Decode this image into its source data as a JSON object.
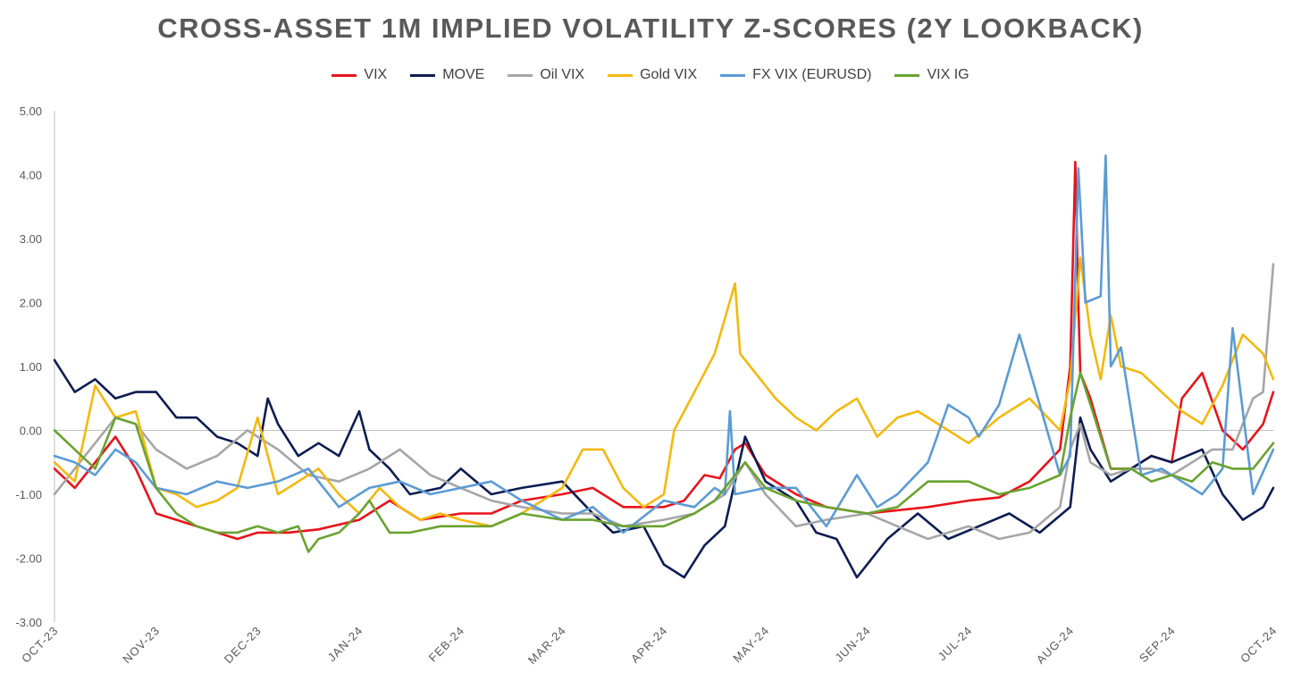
{
  "chart_data": {
    "type": "line",
    "title": "CROSS-ASSET 1M IMPLIED VOLATILITY Z-SCORES (2Y LOOKBACK)",
    "xlabel": "",
    "ylabel": "",
    "ylim": [
      -3,
      5
    ],
    "yticks": [
      "5.00",
      "4.00",
      "3.00",
      "2.00",
      "1.00",
      "0.00",
      "-1.00",
      "-2.00",
      "-3.00"
    ],
    "ytick_values": [
      5,
      4,
      3,
      2,
      1,
      0,
      -1,
      -2,
      -3
    ],
    "x_categories": [
      "OCT-23",
      "NOV-23",
      "DEC-23",
      "JAN-24",
      "FEB-24",
      "MAR-24",
      "APR-24",
      "MAY-24",
      "JUN-24",
      "JUL-24",
      "AUG-24",
      "SEP-24",
      "OCT-24"
    ],
    "x_positions": [
      0,
      1,
      2,
      3,
      4,
      5,
      6,
      7,
      8,
      9,
      10,
      11,
      12
    ],
    "legend_position": "top",
    "series": [
      {
        "name": "VIX",
        "color": "#e8141b",
        "x": [
          0,
          0.2,
          0.4,
          0.6,
          0.8,
          1.0,
          1.2,
          1.4,
          1.6,
          1.8,
          2.0,
          2.3,
          2.6,
          3.0,
          3.3,
          3.6,
          4.0,
          4.3,
          4.6,
          5.0,
          5.3,
          5.6,
          6.0,
          6.2,
          6.4,
          6.55,
          6.7,
          6.8,
          7.0,
          7.3,
          7.6,
          8.0,
          8.3,
          8.6,
          9.0,
          9.3,
          9.6,
          9.9,
          10.0,
          10.05,
          10.08,
          10.1,
          10.2,
          10.4,
          10.6,
          10.8,
          11.0,
          11.1,
          11.3,
          11.5,
          11.7,
          11.9,
          12.0
        ],
        "y": [
          -0.6,
          -0.9,
          -0.5,
          -0.1,
          -0.6,
          -1.3,
          -1.4,
          -1.5,
          -1.6,
          -1.7,
          -1.6,
          -1.6,
          -1.55,
          -1.4,
          -1.1,
          -1.4,
          -1.3,
          -1.3,
          -1.1,
          -1.0,
          -0.9,
          -1.2,
          -1.2,
          -1.1,
          -0.7,
          -0.75,
          -0.3,
          -0.2,
          -0.7,
          -1.0,
          -1.2,
          -1.3,
          -1.25,
          -1.2,
          -1.1,
          -1.05,
          -0.8,
          -0.3,
          1.0,
          4.2,
          2.0,
          0.9,
          0.5,
          -0.6,
          -0.6,
          -0.4,
          -0.5,
          0.5,
          0.9,
          0.0,
          -0.3,
          0.1,
          0.6
        ]
      },
      {
        "name": "MOVE",
        "color": "#0d1c52",
        "x": [
          0,
          0.2,
          0.4,
          0.6,
          0.8,
          1.0,
          1.2,
          1.4,
          1.6,
          1.8,
          2.0,
          2.1,
          2.2,
          2.4,
          2.6,
          2.8,
          3.0,
          3.1,
          3.3,
          3.5,
          3.8,
          4.0,
          4.3,
          4.6,
          5.0,
          5.3,
          5.5,
          5.8,
          6.0,
          6.2,
          6.4,
          6.6,
          6.8,
          7.0,
          7.3,
          7.5,
          7.7,
          7.9,
          8.2,
          8.5,
          8.8,
          9.1,
          9.4,
          9.7,
          10.0,
          10.1,
          10.2,
          10.4,
          10.6,
          10.8,
          11.0,
          11.3,
          11.5,
          11.7,
          11.9,
          12.0
        ],
        "y": [
          1.1,
          0.6,
          0.8,
          0.5,
          0.6,
          0.6,
          0.2,
          0.2,
          -0.1,
          -0.2,
          -0.4,
          0.5,
          0.1,
          -0.4,
          -0.2,
          -0.4,
          0.3,
          -0.3,
          -0.6,
          -1.0,
          -0.9,
          -0.6,
          -1.0,
          -0.9,
          -0.8,
          -1.3,
          -1.6,
          -1.5,
          -2.1,
          -2.3,
          -1.8,
          -1.5,
          -0.1,
          -0.8,
          -1.1,
          -1.6,
          -1.7,
          -2.3,
          -1.7,
          -1.3,
          -1.7,
          -1.5,
          -1.3,
          -1.6,
          -1.2,
          0.2,
          -0.3,
          -0.8,
          -0.6,
          -0.4,
          -0.5,
          -0.3,
          -1.0,
          -1.4,
          -1.2,
          -0.9
        ]
      },
      {
        "name": "Oil VIX",
        "color": "#a6a6a6",
        "x": [
          0,
          0.2,
          0.4,
          0.6,
          0.8,
          1.0,
          1.3,
          1.6,
          1.9,
          2.2,
          2.5,
          2.8,
          3.1,
          3.4,
          3.7,
          4.0,
          4.3,
          4.6,
          5.0,
          5.3,
          5.6,
          6.0,
          6.3,
          6.6,
          6.8,
          7.0,
          7.3,
          7.6,
          8.0,
          8.3,
          8.6,
          9.0,
          9.3,
          9.6,
          9.9,
          10.0,
          10.1,
          10.2,
          10.4,
          10.6,
          10.8,
          11.0,
          11.2,
          11.4,
          11.6,
          11.8,
          11.9,
          12.0
        ],
        "y": [
          -1.0,
          -0.6,
          -0.2,
          0.2,
          0.1,
          -0.3,
          -0.6,
          -0.4,
          0.0,
          -0.3,
          -0.7,
          -0.8,
          -0.6,
          -0.3,
          -0.7,
          -0.9,
          -1.1,
          -1.2,
          -1.3,
          -1.3,
          -1.5,
          -1.4,
          -1.3,
          -1.0,
          -0.5,
          -1.0,
          -1.5,
          -1.4,
          -1.3,
          -1.5,
          -1.7,
          -1.5,
          -1.7,
          -1.6,
          -1.2,
          -0.3,
          0.1,
          -0.5,
          -0.7,
          -0.6,
          -0.6,
          -0.7,
          -0.5,
          -0.3,
          -0.3,
          0.5,
          0.6,
          2.6
        ]
      },
      {
        "name": "Gold VIX",
        "color": "#f5b80f",
        "x": [
          0,
          0.2,
          0.4,
          0.6,
          0.8,
          1.0,
          1.2,
          1.4,
          1.6,
          1.8,
          2.0,
          2.2,
          2.4,
          2.6,
          2.8,
          3.0,
          3.2,
          3.4,
          3.6,
          3.8,
          4.0,
          4.3,
          4.6,
          5.0,
          5.2,
          5.4,
          5.6,
          5.8,
          6.0,
          6.1,
          6.3,
          6.5,
          6.7,
          6.75,
          6.9,
          7.1,
          7.3,
          7.5,
          7.7,
          7.9,
          8.1,
          8.3,
          8.5,
          8.7,
          9.0,
          9.3,
          9.6,
          9.9,
          10.0,
          10.1,
          10.2,
          10.3,
          10.4,
          10.5,
          10.7,
          10.9,
          11.1,
          11.3,
          11.5,
          11.7,
          11.9,
          12.0
        ],
        "y": [
          -0.5,
          -0.8,
          0.7,
          0.2,
          0.3,
          -0.9,
          -1.0,
          -1.2,
          -1.1,
          -0.9,
          0.2,
          -1.0,
          -0.8,
          -0.6,
          -1.0,
          -1.3,
          -0.9,
          -1.2,
          -1.4,
          -1.3,
          -1.4,
          -1.5,
          -1.3,
          -0.9,
          -0.3,
          -0.3,
          -0.9,
          -1.2,
          -1.0,
          0.0,
          0.6,
          1.2,
          2.3,
          1.2,
          0.9,
          0.5,
          0.2,
          0.0,
          0.3,
          0.5,
          -0.1,
          0.2,
          0.3,
          0.1,
          -0.2,
          0.2,
          0.5,
          0.0,
          0.8,
          2.7,
          1.5,
          0.8,
          1.8,
          1.0,
          0.9,
          0.6,
          0.3,
          0.1,
          0.7,
          1.5,
          1.2,
          0.8
        ]
      },
      {
        "name": "FX VIX (EURUSD)",
        "color": "#5b9bd5",
        "x": [
          0,
          0.2,
          0.4,
          0.6,
          0.8,
          1.0,
          1.3,
          1.6,
          1.9,
          2.2,
          2.5,
          2.8,
          3.1,
          3.4,
          3.7,
          4.0,
          4.3,
          4.6,
          5.0,
          5.3,
          5.6,
          6.0,
          6.3,
          6.5,
          6.6,
          6.65,
          6.7,
          7.0,
          7.3,
          7.6,
          7.9,
          8.1,
          8.3,
          8.6,
          8.8,
          9.0,
          9.1,
          9.3,
          9.5,
          9.7,
          9.9,
          10.0,
          10.08,
          10.15,
          10.3,
          10.35,
          10.4,
          10.5,
          10.7,
          10.9,
          11.1,
          11.3,
          11.5,
          11.6,
          11.8,
          12.0
        ],
        "y": [
          -0.4,
          -0.5,
          -0.7,
          -0.3,
          -0.5,
          -0.9,
          -1.0,
          -0.8,
          -0.9,
          -0.8,
          -0.6,
          -1.2,
          -0.9,
          -0.8,
          -1.0,
          -0.9,
          -0.8,
          -1.1,
          -1.4,
          -1.2,
          -1.6,
          -1.1,
          -1.2,
          -0.9,
          -1.0,
          0.3,
          -1.0,
          -0.9,
          -0.9,
          -1.5,
          -0.7,
          -1.2,
          -1.0,
          -0.5,
          0.4,
          0.2,
          -0.1,
          0.4,
          1.5,
          0.4,
          -0.7,
          -0.4,
          4.1,
          2.0,
          2.1,
          4.3,
          1.0,
          1.3,
          -0.7,
          -0.6,
          -0.8,
          -1.0,
          -0.6,
          1.6,
          -1.0,
          -0.3
        ]
      },
      {
        "name": "VIX IG",
        "color": "#6aa330",
        "x": [
          0,
          0.2,
          0.4,
          0.6,
          0.8,
          1.0,
          1.2,
          1.4,
          1.6,
          1.8,
          2.0,
          2.2,
          2.4,
          2.5,
          2.6,
          2.8,
          3.0,
          3.1,
          3.3,
          3.5,
          3.8,
          4.0,
          4.3,
          4.6,
          5.0,
          5.3,
          5.6,
          6.0,
          6.3,
          6.5,
          6.6,
          6.7,
          6.8,
          7.0,
          7.3,
          7.6,
          8.0,
          8.3,
          8.6,
          9.0,
          9.3,
          9.6,
          9.9,
          10.0,
          10.1,
          10.2,
          10.4,
          10.6,
          10.8,
          11.0,
          11.2,
          11.4,
          11.6,
          11.8,
          12.0
        ],
        "y": [
          0.0,
          -0.3,
          -0.6,
          0.2,
          0.1,
          -0.9,
          -1.3,
          -1.5,
          -1.6,
          -1.6,
          -1.5,
          -1.6,
          -1.5,
          -1.9,
          -1.7,
          -1.6,
          -1.3,
          -1.1,
          -1.6,
          -1.6,
          -1.5,
          -1.5,
          -1.5,
          -1.3,
          -1.4,
          -1.4,
          -1.5,
          -1.5,
          -1.3,
          -1.1,
          -0.9,
          -0.7,
          -0.5,
          -0.9,
          -1.1,
          -1.2,
          -1.3,
          -1.2,
          -0.8,
          -0.8,
          -1.0,
          -0.9,
          -0.7,
          0.2,
          0.9,
          0.4,
          -0.6,
          -0.6,
          -0.8,
          -0.7,
          -0.8,
          -0.5,
          -0.6,
          -0.6,
          -0.2
        ]
      }
    ]
  }
}
